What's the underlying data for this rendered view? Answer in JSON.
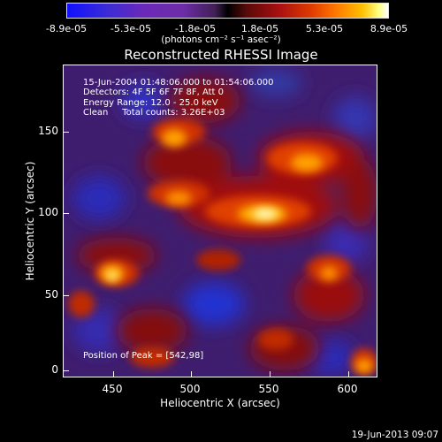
{
  "colorbar": {
    "labels": [
      "-8.9e-05",
      "-5.3e-05",
      "-1.8e-05",
      "1.8e-05",
      "5.3e-05",
      "8.9e-05"
    ],
    "units": "(photons cm⁻² s⁻¹ asec⁻²)"
  },
  "title": "Reconstructed RHESSI Image",
  "info": {
    "time": "15-Jun-2004 01:48:06.000 to 01:54:06.000",
    "detectors": "Detectors: 4F 5F 6F 7F 8F, Att 0",
    "energy": "Energy Range: 12.0 - 25.0 keV",
    "clean": "Clean     Total counts: 3.26E+03"
  },
  "peak": "Position of Peak = [542,98]",
  "axes": {
    "xlabel": "Heliocentric X (arcsec)",
    "ylabel": "Heliocentric Y (arcsec)",
    "xticks": [
      "450",
      "500",
      "550",
      "600"
    ],
    "yticks": [
      "150",
      "100",
      "50",
      "0"
    ]
  },
  "date": "19-Jun-2013 09:07"
}
